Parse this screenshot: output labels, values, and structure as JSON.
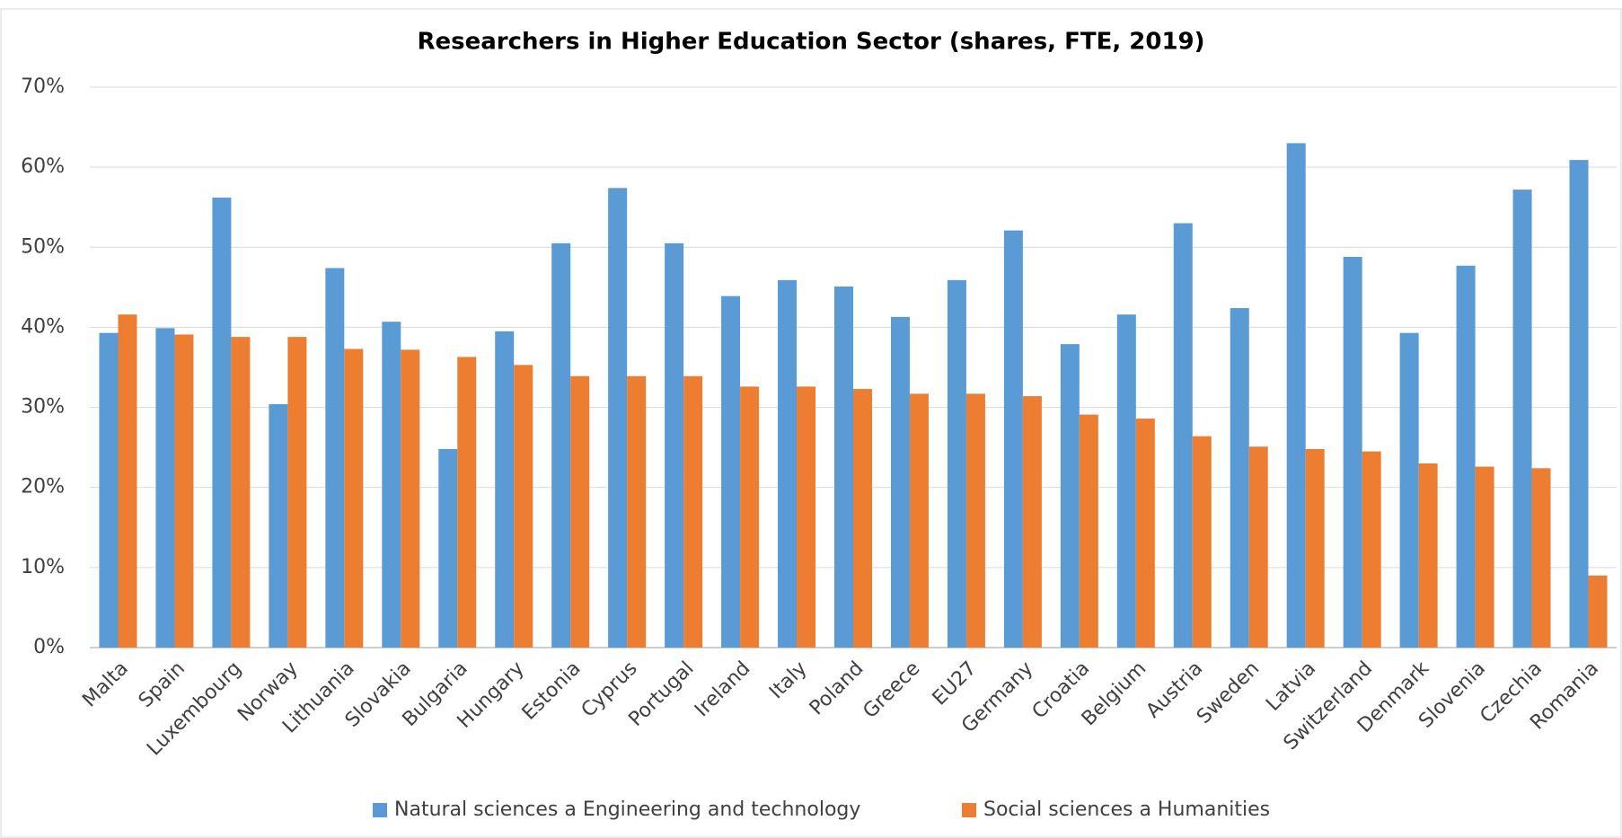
{
  "chart_data": {
    "type": "bar",
    "title": "Researchers in Higher Education Sector (shares, FTE, 2019)",
    "categories": [
      "Malta",
      "Spain",
      "Luxembourg",
      "Norway",
      "Lithuania",
      "Slovakia",
      "Bulgaria",
      "Hungary",
      "Estonia",
      "Cyprus",
      "Portugal",
      "Ireland",
      "Italy",
      "Poland",
      "Greece",
      "EU27",
      "Germany",
      "Croatia",
      "Belgium",
      "Austria",
      "Sweden",
      "Latvia",
      "Switzerland",
      "Denmark",
      "Slovenia",
      "Czechia",
      "Romania"
    ],
    "series": [
      {
        "name": "Natural sciences a Engineering and technology",
        "color": "#5b9bd5",
        "values": [
          39.3,
          39.9,
          56.2,
          30.4,
          47.4,
          40.7,
          24.8,
          39.5,
          50.5,
          57.4,
          50.5,
          43.9,
          45.9,
          45.1,
          41.3,
          45.9,
          52.1,
          37.9,
          41.6,
          53.0,
          42.4,
          63.0,
          48.8,
          39.3,
          47.7,
          57.2,
          60.9
        ]
      },
      {
        "name": "Social sciences a Humanities",
        "color": "#ed7d31",
        "values": [
          41.6,
          39.1,
          38.8,
          38.8,
          37.3,
          37.2,
          36.3,
          35.3,
          33.9,
          33.9,
          33.9,
          32.6,
          32.6,
          32.3,
          31.7,
          31.7,
          31.4,
          29.1,
          28.6,
          26.4,
          25.1,
          24.8,
          24.5,
          23.0,
          22.6,
          22.4,
          9.0
        ]
      }
    ],
    "ylim": [
      0,
      70
    ],
    "yticks": [
      {
        "value": 0,
        "label": "0%"
      },
      {
        "value": 10,
        "label": "10%"
      },
      {
        "value": 20,
        "label": "20%"
      },
      {
        "value": 30,
        "label": "30%"
      },
      {
        "value": 40,
        "label": "40%"
      },
      {
        "value": 50,
        "label": "50%"
      },
      {
        "value": 60,
        "label": "60%"
      },
      {
        "value": 70,
        "label": "70%"
      }
    ],
    "grid": true,
    "legend": "bottom"
  }
}
